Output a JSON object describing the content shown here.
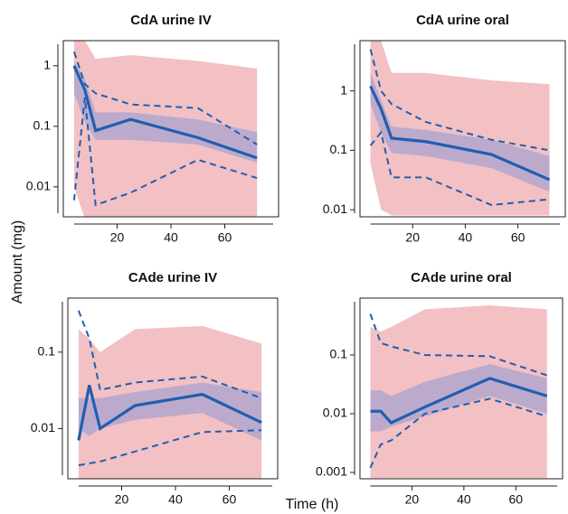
{
  "xlabel": "Time (h)",
  "ylabel": "Amount (mg)",
  "chart_data": [
    {
      "type": "line",
      "title": "CdA urine IV",
      "log_y": true,
      "x": [
        4,
        8,
        12,
        25,
        50,
        72
      ],
      "xlim": [
        0,
        80
      ],
      "xticks": [
        20,
        40,
        60
      ],
      "ylim": [
        0.0032,
        2.6
      ],
      "yticks": [
        0.01,
        0.1,
        1
      ],
      "bands": [
        {
          "color": "#e98c92",
          "lower": [
            0.01,
            0.003,
            0.003,
            0.003,
            0.003,
            0.003
          ],
          "upper": [
            2.6,
            2.6,
            1.3,
            1.5,
            1.2,
            0.9
          ]
        },
        {
          "color": "#8e98d6",
          "lower": [
            0.35,
            0.12,
            0.06,
            0.06,
            0.05,
            0.025
          ],
          "upper": [
            1.2,
            0.6,
            0.17,
            0.17,
            0.13,
            0.08
          ]
        }
      ],
      "series": [
        {
          "color": "#1f5fb0",
          "dashed": false,
          "values": [
            1.0,
            0.4,
            0.085,
            0.13,
            0.065,
            0.03
          ]
        },
        {
          "color": "#1f5fb0",
          "dashed": true,
          "values": [
            1.7,
            0.5,
            0.35,
            0.23,
            0.2,
            0.05
          ]
        },
        {
          "color": "#1f5fb0",
          "dashed": true,
          "values": [
            0.006,
            0.3,
            0.005,
            0.008,
            0.028,
            0.014
          ]
        }
      ]
    },
    {
      "type": "line",
      "title": "CdA urine oral",
      "log_y": true,
      "x": [
        4,
        8,
        12,
        25,
        50,
        72
      ],
      "xlim": [
        0,
        78
      ],
      "xticks": [
        20,
        40,
        60
      ],
      "ylim": [
        0.0076,
        7
      ],
      "yticks": [
        0.01,
        0.1,
        1
      ],
      "bands": [
        {
          "color": "#e98c92",
          "lower": [
            0.06,
            0.01,
            0.008,
            0.008,
            0.008,
            0.008
          ],
          "upper": [
            7,
            7,
            2,
            2,
            1.5,
            1.3
          ]
        },
        {
          "color": "#8e98d6",
          "lower": [
            0.6,
            0.2,
            0.09,
            0.08,
            0.05,
            0.02
          ],
          "upper": [
            2,
            0.7,
            0.25,
            0.22,
            0.15,
            0.08
          ]
        }
      ],
      "series": [
        {
          "color": "#1f5fb0",
          "dashed": false,
          "values": [
            1.2,
            0.5,
            0.16,
            0.14,
            0.085,
            0.032
          ]
        },
        {
          "color": "#1f5fb0",
          "dashed": true,
          "values": [
            5,
            1.0,
            0.6,
            0.3,
            0.15,
            0.1
          ]
        },
        {
          "color": "#1f5fb0",
          "dashed": true,
          "values": [
            0.12,
            0.2,
            0.035,
            0.035,
            0.012,
            0.015
          ]
        }
      ]
    },
    {
      "type": "line",
      "title": "CAde urine IV",
      "log_y": true,
      "x": [
        4,
        8,
        12,
        25,
        50,
        72
      ],
      "xlim": [
        0,
        78
      ],
      "xticks": [
        20,
        40,
        60
      ],
      "ylim": [
        0.0022,
        0.51
      ],
      "yticks": [
        0.01,
        0.1
      ],
      "bands": [
        {
          "color": "#e98c92",
          "lower": [
            0.0022,
            0.0022,
            0.0022,
            0.0022,
            0.0022,
            0.0022
          ],
          "upper": [
            0.2,
            0.15,
            0.1,
            0.2,
            0.22,
            0.13
          ]
        },
        {
          "color": "#8e98d6",
          "lower": [
            0.01,
            0.008,
            0.01,
            0.013,
            0.016,
            0.007
          ],
          "upper": [
            0.025,
            0.025,
            0.025,
            0.03,
            0.04,
            0.03
          ]
        }
      ],
      "series": [
        {
          "color": "#1f5fb0",
          "dashed": false,
          "values": [
            0.007,
            0.037,
            0.01,
            0.02,
            0.028,
            0.012
          ]
        },
        {
          "color": "#1f5fb0",
          "dashed": true,
          "values": [
            0.35,
            0.15,
            0.032,
            0.04,
            0.048,
            0.025
          ]
        },
        {
          "color": "#1f5fb0",
          "dashed": true,
          "values": [
            0.0033,
            0.0035,
            0.0037,
            0.005,
            0.009,
            0.0095
          ]
        }
      ]
    },
    {
      "type": "line",
      "title": "CAde urine oral",
      "log_y": true,
      "x": [
        4,
        8,
        12,
        25,
        50,
        72
      ],
      "xlim": [
        0,
        78
      ],
      "xticks": [
        20,
        40,
        60
      ],
      "ylim": [
        0.00078,
        0.93
      ],
      "yticks": [
        0.001,
        0.01,
        0.1
      ],
      "bands": [
        {
          "color": "#e98c92",
          "lower": [
            0.0008,
            0.0008,
            0.0008,
            0.0008,
            0.0008,
            0.0008
          ],
          "upper": [
            0.3,
            0.25,
            0.3,
            0.6,
            0.7,
            0.6
          ]
        },
        {
          "color": "#8e98d6",
          "lower": [
            0.005,
            0.005,
            0.006,
            0.009,
            0.02,
            0.01
          ],
          "upper": [
            0.025,
            0.025,
            0.02,
            0.035,
            0.07,
            0.04
          ]
        }
      ],
      "series": [
        {
          "color": "#1f5fb0",
          "dashed": false,
          "values": [
            0.011,
            0.011,
            0.007,
            0.013,
            0.04,
            0.02
          ]
        },
        {
          "color": "#1f5fb0",
          "dashed": true,
          "values": [
            0.5,
            0.16,
            0.14,
            0.1,
            0.095,
            0.045
          ]
        },
        {
          "color": "#1f5fb0",
          "dashed": true,
          "values": [
            0.0012,
            0.003,
            0.0035,
            0.01,
            0.018,
            0.009
          ]
        }
      ]
    }
  ]
}
